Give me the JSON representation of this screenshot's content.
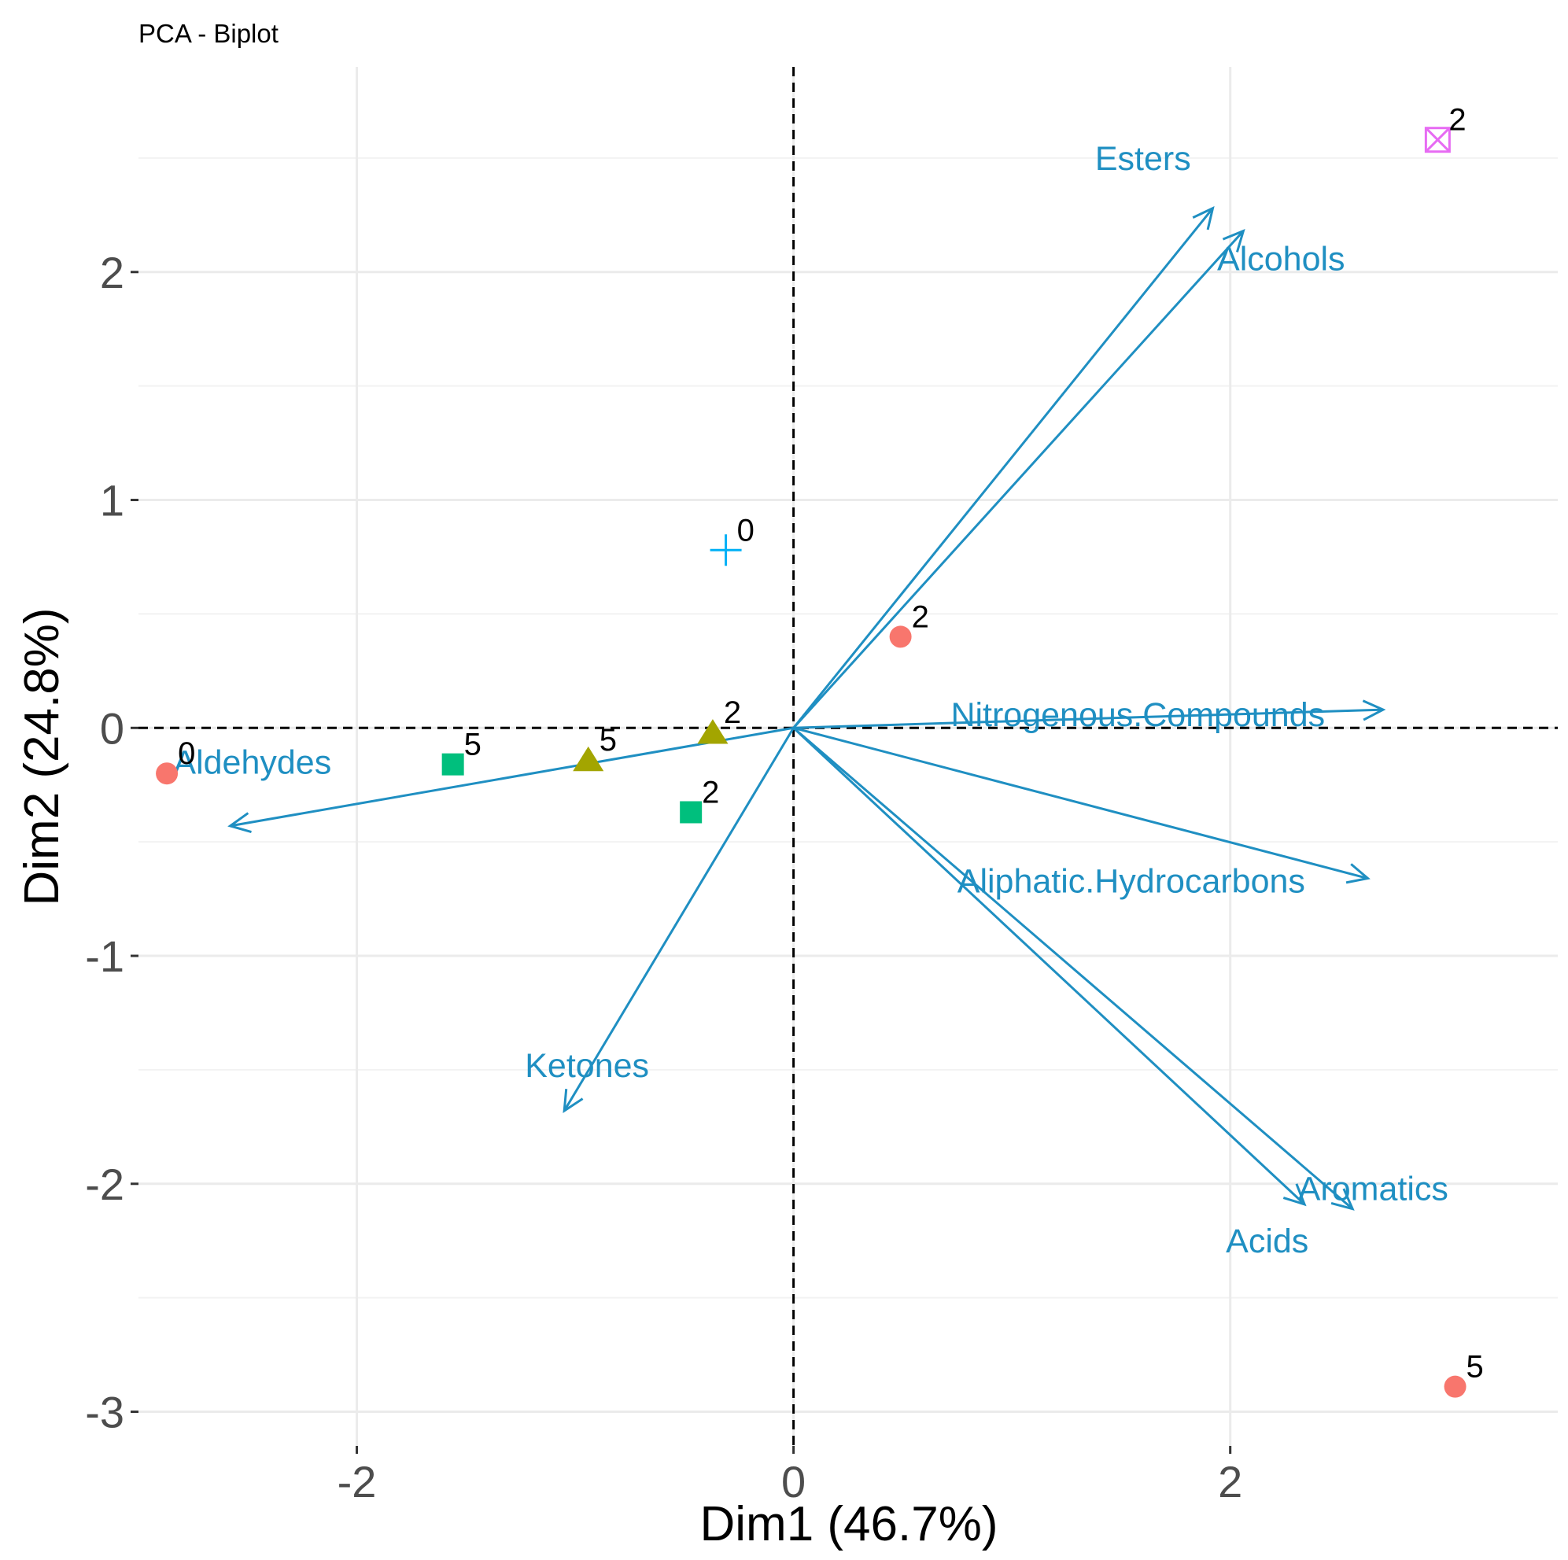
{
  "chart_data": {
    "type": "scatter",
    "title": "PCA - Biplot",
    "xlabel": "Dim1 (46.7%)",
    "ylabel": "Dim2 (24.8%)",
    "xlim": [
      -3.0,
      3.5
    ],
    "ylim": [
      -3.15,
      2.9
    ],
    "xticks": [
      -2,
      0,
      2
    ],
    "yticks": [
      -3,
      -2,
      -1,
      0,
      1,
      2
    ],
    "grid": true,
    "legend": "none",
    "colors": {
      "arrow": "#1f8fc2",
      "point_red": "#f8766d",
      "point_olive": "#a3a500",
      "point_green": "#00bf7d",
      "point_cyan": "#00b0f6",
      "point_magenta": "#e76bf3"
    },
    "variables": [
      {
        "name": "Esters",
        "x": 1.92,
        "y": 2.28
      },
      {
        "name": "Alcohols",
        "x": 2.06,
        "y": 2.18
      },
      {
        "name": "Nitrogenous.Compounds",
        "x": 2.7,
        "y": 0.08
      },
      {
        "name": "Aliphatic.Hydrocarbons",
        "x": 2.63,
        "y": -0.66
      },
      {
        "name": "Aromatics",
        "x": 2.56,
        "y": -2.11
      },
      {
        "name": "Acids",
        "x": 2.34,
        "y": -2.09
      },
      {
        "name": "Ketones",
        "x": -1.05,
        "y": -1.68
      },
      {
        "name": "Aldehydes",
        "x": -2.58,
        "y": -0.43
      }
    ],
    "points": [
      {
        "label": "0",
        "x": -2.87,
        "y": -0.2,
        "shape": "circle",
        "color": "#f8766d"
      },
      {
        "label": "2",
        "x": 0.49,
        "y": 0.4,
        "shape": "circle",
        "color": "#f8766d"
      },
      {
        "label": "5",
        "x": 3.03,
        "y": -2.89,
        "shape": "circle",
        "color": "#f8766d"
      },
      {
        "label": "5",
        "x": -0.94,
        "y": -0.14,
        "shape": "triangle",
        "color": "#a3a500"
      },
      {
        "label": "2",
        "x": -0.37,
        "y": -0.02,
        "shape": "triangle",
        "color": "#a3a500"
      },
      {
        "label": "5",
        "x": -1.56,
        "y": -0.16,
        "shape": "square",
        "color": "#00bf7d"
      },
      {
        "label": "2",
        "x": -0.47,
        "y": -0.37,
        "shape": "square",
        "color": "#00bf7d"
      },
      {
        "label": "0",
        "x": -0.31,
        "y": 0.78,
        "shape": "plus",
        "color": "#00b0f6"
      },
      {
        "label": "2",
        "x": 2.95,
        "y": 2.58,
        "shape": "boxcross",
        "color": "#e76bf3"
      }
    ]
  }
}
